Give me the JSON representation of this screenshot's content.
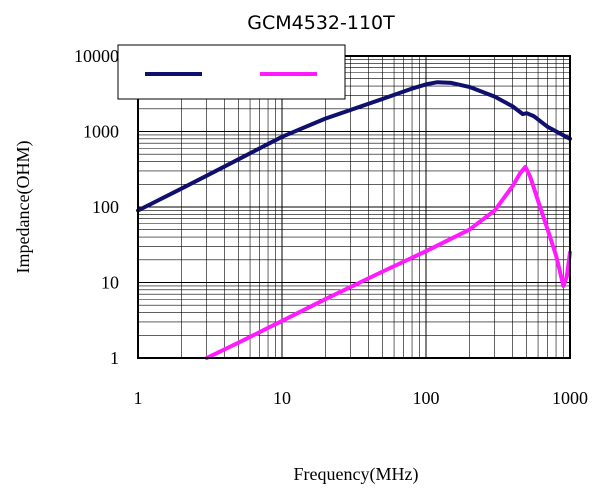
{
  "chart_data": {
    "type": "line",
    "title": "GCM4532-110T",
    "xlabel": "Frequency(MHz)",
    "ylabel": "Impedance(OHM)",
    "x_scale": "log",
    "y_scale": "log",
    "xlim": [
      1,
      1000
    ],
    "ylim": [
      1,
      10000
    ],
    "x_ticks": [
      "1",
      "10",
      "100",
      "1000"
    ],
    "y_ticks": [
      "1",
      "10",
      "100",
      "1000",
      "10000"
    ],
    "grid": true,
    "legend": "top-left",
    "series": [
      {
        "color": "#0f0f6e",
        "points": [
          [
            1,
            90
          ],
          [
            2,
            175
          ],
          [
            3,
            260
          ],
          [
            5,
            430
          ],
          [
            10,
            850
          ],
          [
            20,
            1480
          ],
          [
            50,
            2700
          ],
          [
            80,
            3700
          ],
          [
            100,
            4200
          ],
          [
            120,
            4500
          ],
          [
            150,
            4400
          ],
          [
            200,
            3900
          ],
          [
            300,
            2900
          ],
          [
            400,
            2150
          ],
          [
            470,
            1700
          ],
          [
            500,
            1750
          ],
          [
            560,
            1600
          ],
          [
            700,
            1150
          ],
          [
            1000,
            800
          ]
        ]
      },
      {
        "color": "#ff1aff",
        "points": [
          [
            3,
            1
          ],
          [
            5,
            1.6
          ],
          [
            10,
            3.1
          ],
          [
            20,
            6
          ],
          [
            50,
            14
          ],
          [
            100,
            26
          ],
          [
            200,
            50
          ],
          [
            300,
            90
          ],
          [
            400,
            190
          ],
          [
            450,
            280
          ],
          [
            490,
            340
          ],
          [
            530,
            250
          ],
          [
            600,
            120
          ],
          [
            700,
            50
          ],
          [
            800,
            23
          ],
          [
            900,
            9
          ],
          [
            950,
            12
          ],
          [
            1000,
            25
          ]
        ]
      }
    ]
  }
}
